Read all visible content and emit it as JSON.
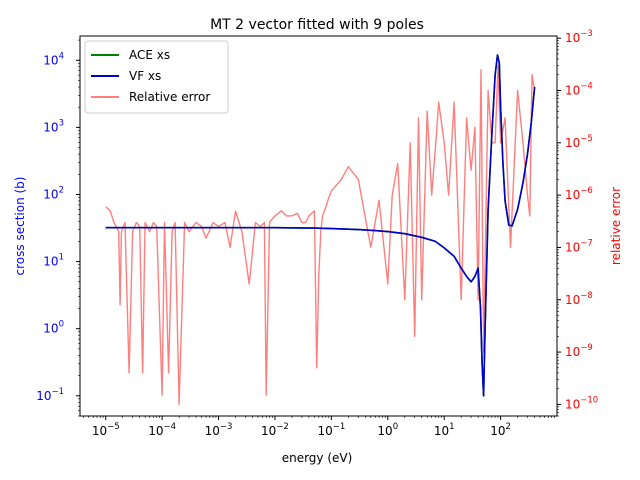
{
  "chart_data": {
    "type": "line",
    "title": "MT 2 vector fitted with 9 poles",
    "xlabel": "energy (eV)",
    "ylabel_left": "cross section (b)",
    "ylabel_right": "relative error",
    "x_scale": "log",
    "y_left_scale": "log",
    "y_right_scale": "log",
    "xlim": [
      3.5e-06,
      1000
    ],
    "ylim_left": [
      0.05,
      23000
    ],
    "ylim_right": [
      6e-11,
      0.0011
    ],
    "x_ticks": [
      {
        "value": 1e-05,
        "base": "10",
        "exp": "−5"
      },
      {
        "value": 0.0001,
        "base": "10",
        "exp": "−4"
      },
      {
        "value": 0.001,
        "base": "10",
        "exp": "−3"
      },
      {
        "value": 0.01,
        "base": "10",
        "exp": "−2"
      },
      {
        "value": 0.1,
        "base": "10",
        "exp": "−1"
      },
      {
        "value": 1,
        "base": "10",
        "exp": "0"
      },
      {
        "value": 10,
        "base": "10",
        "exp": "1"
      },
      {
        "value": 100,
        "base": "10",
        "exp": "2"
      }
    ],
    "y_left_ticks": [
      {
        "value": 0.1,
        "base": "10",
        "exp": "−1"
      },
      {
        "value": 1,
        "base": "10",
        "exp": "0"
      },
      {
        "value": 10,
        "base": "10",
        "exp": "1"
      },
      {
        "value": 100,
        "base": "10",
        "exp": "2"
      },
      {
        "value": 1000,
        "base": "10",
        "exp": "3"
      },
      {
        "value": 10000,
        "base": "10",
        "exp": "4"
      }
    ],
    "y_right_ticks": [
      {
        "value": 1e-10,
        "base": "10",
        "exp": "−10"
      },
      {
        "value": 1e-09,
        "base": "10",
        "exp": "−9"
      },
      {
        "value": 1e-08,
        "base": "10",
        "exp": "−8"
      },
      {
        "value": 1e-07,
        "base": "10",
        "exp": "−7"
      },
      {
        "value": 1e-06,
        "base": "10",
        "exp": "−6"
      },
      {
        "value": 1e-05,
        "base": "10",
        "exp": "−5"
      },
      {
        "value": 0.0001,
        "base": "10",
        "exp": "−4"
      },
      {
        "value": 0.001,
        "base": "10",
        "exp": "−3"
      }
    ],
    "legend_position": "upper-left",
    "colors": {
      "ace": "#008000",
      "vf": "#0000cc",
      "error": "#ff7f7f",
      "left_axis": "#0000ff",
      "right_axis": "#ff0000"
    },
    "series": [
      {
        "name": "ACE xs",
        "axis": "left",
        "x": [
          1e-05,
          0.0001,
          0.001,
          0.01,
          0.05,
          0.1,
          0.3,
          0.6,
          1,
          2,
          4,
          7,
          10,
          15,
          20,
          25,
          30,
          35,
          40,
          44,
          47,
          50,
          52,
          55,
          60,
          70,
          80,
          88,
          95,
          100,
          110,
          120,
          140,
          160,
          200,
          250,
          300,
          350,
          400
        ],
        "y": [
          32,
          32,
          32,
          32,
          31.5,
          31,
          30,
          29,
          28,
          26,
          23,
          20,
          16,
          12,
          8,
          6,
          5,
          6,
          8,
          2,
          0.3,
          0.1,
          0.5,
          3,
          60,
          800,
          6000,
          12000,
          9000,
          2000,
          300,
          80,
          35,
          34,
          60,
          150,
          400,
          1200,
          4000
        ]
      },
      {
        "name": "VF xs",
        "axis": "left",
        "x": [
          1e-05,
          0.0001,
          0.001,
          0.01,
          0.05,
          0.1,
          0.3,
          0.6,
          1,
          2,
          4,
          7,
          10,
          15,
          20,
          25,
          30,
          35,
          40,
          44,
          47,
          50,
          52,
          55,
          60,
          70,
          80,
          88,
          95,
          100,
          110,
          120,
          140,
          160,
          200,
          250,
          300,
          350,
          400
        ],
        "y": [
          32,
          32,
          32,
          32,
          31.5,
          31,
          30,
          29,
          28,
          26,
          23,
          20,
          16,
          12,
          8,
          6,
          5,
          6,
          8,
          2,
          0.3,
          0.1,
          0.5,
          3,
          60,
          800,
          6000,
          12000,
          9000,
          2000,
          300,
          80,
          35,
          34,
          60,
          150,
          400,
          1200,
          4000
        ]
      },
      {
        "name": "Relative error",
        "axis": "right",
        "x": [
          1e-05,
          1.2e-05,
          1.4e-05,
          1.7e-05,
          1.8e-05,
          1.9e-05,
          2.2e-05,
          2.6e-05,
          3e-05,
          3.5e-05,
          4e-05,
          4.5e-05,
          5e-05,
          6e-05,
          7e-05,
          8e-05,
          0.0001,
          0.00011,
          0.00013,
          0.00015,
          0.00017,
          0.0002,
          0.00025,
          0.0003,
          0.0004,
          0.0005,
          0.0006,
          0.0008,
          0.001,
          0.0013,
          0.0016,
          0.002,
          0.0026,
          0.0035,
          0.0045,
          0.0055,
          0.0065,
          0.007,
          0.008,
          0.01,
          0.013,
          0.016,
          0.02,
          0.025,
          0.03,
          0.035,
          0.04,
          0.05,
          0.055,
          0.06,
          0.065,
          0.07,
          0.08,
          0.09,
          0.1,
          0.15,
          0.2,
          0.3,
          0.5,
          0.7,
          1,
          1.2,
          1.5,
          2,
          2.5,
          3,
          3.5,
          4,
          5,
          6,
          7,
          8,
          10,
          12,
          15,
          20,
          25,
          30,
          35,
          40,
          45,
          50,
          60,
          70,
          80,
          90,
          100,
          120,
          150,
          200,
          250,
          300,
          330,
          360,
          400
        ],
        "y": [
          6e-07,
          5e-07,
          3e-07,
          2e-07,
          8e-09,
          2e-07,
          3e-07,
          4e-10,
          2e-07,
          3e-07,
          2.5e-07,
          4e-10,
          3e-07,
          2e-07,
          3e-07,
          2.5e-07,
          1.5e-10,
          3e-07,
          4e-10,
          2e-07,
          3e-07,
          1e-10,
          3e-07,
          2e-07,
          3e-07,
          2.5e-07,
          1.5e-07,
          3e-07,
          2.5e-07,
          3e-07,
          1e-07,
          5e-07,
          2e-07,
          2e-08,
          3e-07,
          2.5e-07,
          3e-07,
          1.5e-10,
          3e-07,
          4e-07,
          5e-07,
          4e-07,
          4e-07,
          4.5e-07,
          3e-07,
          3e-07,
          4e-07,
          5e-07,
          5e-10,
          3e-08,
          2e-07,
          4e-07,
          6e-07,
          9e-07,
          1.2e-06,
          2e-06,
          3.5e-06,
          2e-06,
          1e-07,
          8e-07,
          2e-08,
          1e-06,
          4e-06,
          1e-08,
          1e-05,
          2e-09,
          3e-05,
          1e-08,
          4e-05,
          1e-06,
          8e-06,
          6e-05,
          1e-05,
          1e-06,
          6e-05,
          1e-08,
          3e-05,
          3e-06,
          2e-05,
          1e-08,
          0.00025,
          1e-09,
          0.0001,
          1e-05,
          1e-05,
          0.0003,
          1e-05,
          3e-05,
          1e-07,
          0.0001,
          1e-05,
          1e-06,
          4e-07,
          0.0002,
          0.0001
        ]
      }
    ]
  }
}
